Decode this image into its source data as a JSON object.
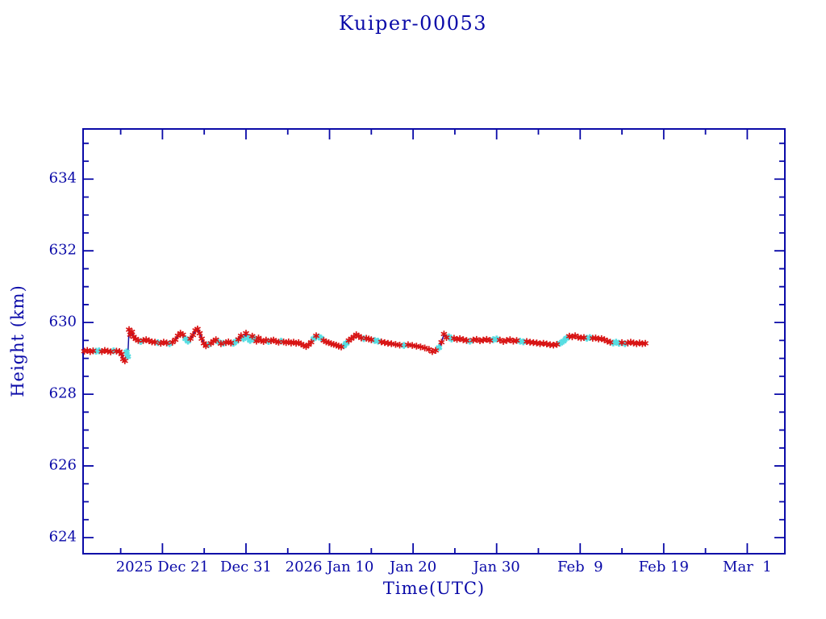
{
  "title": "Kuiper-00053",
  "colors": {
    "axis": "#0a0aa8",
    "text": "#0a0aa8",
    "connect_line": "#1212a0",
    "red_marker": "#d81414",
    "cyan_marker": "#57dde2",
    "background": "#ffffff"
  },
  "axes": {
    "x": {
      "label": "Time(UTC)",
      "majors": [
        {
          "day": 9.5,
          "label": "2025 Dec 21"
        },
        {
          "day": 19.5,
          "label": "Dec 31"
        },
        {
          "day": 29.5,
          "label": "2026 Jan 10"
        },
        {
          "day": 39.5,
          "label": "Jan 20"
        },
        {
          "day": 49.5,
          "label": "Jan 30"
        },
        {
          "day": 59.5,
          "label": "Feb  9"
        },
        {
          "day": 69.5,
          "label": "Feb 19"
        },
        {
          "day": 79.5,
          "label": "Mar  1"
        }
      ],
      "minor_days": [
        4.5,
        14.5,
        24.5,
        34.5,
        44.5,
        54.5,
        64.5,
        74.5
      ]
    },
    "y": {
      "label": "Height (km)",
      "majors": [
        {
          "value": 624,
          "label": "624"
        },
        {
          "value": 626,
          "label": "626"
        },
        {
          "value": 628,
          "label": "628"
        },
        {
          "value": 630,
          "label": "630"
        },
        {
          "value": 632,
          "label": "632"
        },
        {
          "value": 634,
          "label": "634"
        }
      ],
      "minor_values": [
        624.5,
        625,
        625.5,
        626.5,
        627,
        627.5,
        628.5,
        629,
        629.5,
        630.5,
        631,
        631.5,
        632.5,
        633,
        633.5,
        634.5,
        635
      ]
    }
  },
  "chart_data": {
    "type": "scatter",
    "title": "Kuiper-00053",
    "xlabel": "Time(UTC)",
    "ylabel": "Height (km)",
    "x_unit": "days, 0 = plot left edge (approx. 2025 Dec 11 12:00 UTC)",
    "xlim": [
      0,
      84
    ],
    "ylim": [
      623.55,
      635.4
    ],
    "grid": false,
    "legend": "none",
    "marker_colors": {
      "0": "#d81414",
      "1": "#57dde2"
    },
    "point_format": "[day, height_km, cyan_flag(optional)]",
    "points": [
      [
        0.15,
        629.2
      ],
      [
        0.5,
        629.22
      ],
      [
        0.85,
        629.19
      ],
      [
        1.2,
        629.21
      ],
      [
        1.55,
        629.2,
        1
      ],
      [
        1.9,
        629.21,
        1
      ],
      [
        2.25,
        629.19
      ],
      [
        2.6,
        629.22
      ],
      [
        2.95,
        629.2
      ],
      [
        3.3,
        629.18
      ],
      [
        3.65,
        629.21,
        1
      ],
      [
        4.0,
        629.2
      ],
      [
        4.35,
        629.19
      ],
      [
        4.6,
        629.12
      ],
      [
        4.8,
        628.98
      ],
      [
        5.0,
        628.93
      ],
      [
        5.2,
        629.18,
        1
      ],
      [
        5.35,
        629.05,
        1
      ],
      [
        5.5,
        629.8
      ],
      [
        5.65,
        629.66
      ],
      [
        5.85,
        629.74
      ],
      [
        6.05,
        629.6
      ],
      [
        6.3,
        629.54
      ],
      [
        6.6,
        629.5
      ],
      [
        6.9,
        629.47,
        1
      ],
      [
        7.2,
        629.5
      ],
      [
        7.55,
        629.52
      ],
      [
        7.9,
        629.49
      ],
      [
        8.25,
        629.46
      ],
      [
        8.6,
        629.45
      ],
      [
        8.95,
        629.44,
        1
      ],
      [
        9.3,
        629.42
      ],
      [
        9.65,
        629.45
      ],
      [
        10.0,
        629.43
      ],
      [
        10.35,
        629.41,
        1
      ],
      [
        10.7,
        629.45
      ],
      [
        11.05,
        629.52
      ],
      [
        11.35,
        629.63
      ],
      [
        11.65,
        629.7
      ],
      [
        11.95,
        629.66
      ],
      [
        12.25,
        629.55,
        1
      ],
      [
        12.55,
        629.48,
        1
      ],
      [
        12.85,
        629.55
      ],
      [
        13.15,
        629.65
      ],
      [
        13.45,
        629.78
      ],
      [
        13.7,
        629.82
      ],
      [
        13.95,
        629.7
      ],
      [
        14.2,
        629.55
      ],
      [
        14.45,
        629.42
      ],
      [
        14.7,
        629.35
      ],
      [
        15.0,
        629.38,
        1
      ],
      [
        15.3,
        629.42
      ],
      [
        15.6,
        629.48
      ],
      [
        15.9,
        629.52
      ],
      [
        16.2,
        629.46,
        1
      ],
      [
        16.5,
        629.41
      ],
      [
        16.8,
        629.42,
        1
      ],
      [
        17.1,
        629.44
      ],
      [
        17.4,
        629.46
      ],
      [
        17.7,
        629.43
      ],
      [
        18.0,
        629.42,
        1
      ],
      [
        18.3,
        629.47,
        1
      ],
      [
        18.6,
        629.53
      ],
      [
        18.9,
        629.63
      ],
      [
        19.2,
        629.55,
        1
      ],
      [
        19.5,
        629.7
      ],
      [
        19.75,
        629.58,
        1
      ],
      [
        20.0,
        629.5,
        1
      ],
      [
        20.25,
        629.62
      ],
      [
        20.5,
        629.55,
        1
      ],
      [
        20.75,
        629.48
      ],
      [
        21.0,
        629.57
      ],
      [
        21.3,
        629.5
      ],
      [
        21.6,
        629.47
      ],
      [
        21.9,
        629.51
      ],
      [
        22.2,
        629.47,
        1
      ],
      [
        22.5,
        629.49
      ],
      [
        22.8,
        629.51
      ],
      [
        23.1,
        629.47
      ],
      [
        23.4,
        629.45
      ],
      [
        23.7,
        629.48,
        1
      ],
      [
        24.0,
        629.46
      ],
      [
        24.3,
        629.44
      ],
      [
        24.6,
        629.46
      ],
      [
        24.9,
        629.43
      ],
      [
        25.2,
        629.45
      ],
      [
        25.5,
        629.42
      ],
      [
        25.8,
        629.44
      ],
      [
        26.1,
        629.4
      ],
      [
        26.4,
        629.36
      ],
      [
        26.7,
        629.33
      ],
      [
        27.0,
        629.38
      ],
      [
        27.3,
        629.45
      ],
      [
        27.6,
        629.55,
        1
      ],
      [
        27.9,
        629.63
      ],
      [
        28.2,
        629.6,
        1
      ],
      [
        28.5,
        629.56,
        1
      ],
      [
        28.8,
        629.5
      ],
      [
        29.1,
        629.46
      ],
      [
        29.4,
        629.44
      ],
      [
        29.7,
        629.41
      ],
      [
        30.0,
        629.39
      ],
      [
        30.3,
        629.37
      ],
      [
        30.6,
        629.34
      ],
      [
        30.9,
        629.32
      ],
      [
        31.2,
        629.35,
        1
      ],
      [
        31.5,
        629.42,
        1
      ],
      [
        31.8,
        629.5
      ],
      [
        32.1,
        629.55
      ],
      [
        32.4,
        629.6
      ],
      [
        32.7,
        629.66
      ],
      [
        33.0,
        629.62
      ],
      [
        33.3,
        629.57
      ],
      [
        33.6,
        629.55,
        1
      ],
      [
        33.9,
        629.56
      ],
      [
        34.2,
        629.54
      ],
      [
        34.5,
        629.52
      ],
      [
        34.9,
        629.5,
        1
      ],
      [
        35.3,
        629.48,
        1
      ],
      [
        35.7,
        629.46
      ],
      [
        36.1,
        629.44
      ],
      [
        36.5,
        629.42
      ],
      [
        36.9,
        629.41
      ],
      [
        37.4,
        629.39
      ],
      [
        37.9,
        629.37
      ],
      [
        38.4,
        629.36,
        1
      ],
      [
        38.9,
        629.38
      ],
      [
        39.4,
        629.36
      ],
      [
        39.9,
        629.34
      ],
      [
        40.4,
        629.32
      ],
      [
        40.9,
        629.29
      ],
      [
        41.4,
        629.25
      ],
      [
        41.8,
        629.19
      ],
      [
        42.2,
        629.22
      ],
      [
        42.6,
        629.3,
        1
      ],
      [
        42.9,
        629.45
      ],
      [
        43.2,
        629.68
      ],
      [
        43.5,
        629.58
      ],
      [
        43.8,
        629.6,
        1
      ],
      [
        44.1,
        629.54,
        1
      ],
      [
        44.4,
        629.56
      ],
      [
        44.75,
        629.53
      ],
      [
        45.1,
        629.55
      ],
      [
        45.5,
        629.52
      ],
      [
        45.9,
        629.5
      ],
      [
        46.3,
        629.48,
        1
      ],
      [
        46.7,
        629.51
      ],
      [
        47.1,
        629.53
      ],
      [
        47.5,
        629.49
      ],
      [
        47.9,
        629.51
      ],
      [
        48.3,
        629.53
      ],
      [
        48.7,
        629.5
      ],
      [
        49.1,
        629.52,
        1
      ],
      [
        49.5,
        629.54,
        1
      ],
      [
        49.9,
        629.51
      ],
      [
        50.3,
        629.47
      ],
      [
        50.7,
        629.5
      ],
      [
        51.1,
        629.52
      ],
      [
        51.5,
        629.48
      ],
      [
        51.9,
        629.5
      ],
      [
        52.3,
        629.48,
        1
      ],
      [
        52.7,
        629.46,
        1
      ],
      [
        53.1,
        629.47
      ],
      [
        53.5,
        629.45
      ],
      [
        53.9,
        629.44
      ],
      [
        54.3,
        629.43
      ],
      [
        54.7,
        629.41
      ],
      [
        55.1,
        629.42
      ],
      [
        55.5,
        629.4
      ],
      [
        55.9,
        629.38
      ],
      [
        56.3,
        629.37
      ],
      [
        56.7,
        629.39
      ],
      [
        57.1,
        629.42,
        1
      ],
      [
        57.5,
        629.48,
        1
      ],
      [
        57.85,
        629.56,
        1
      ],
      [
        58.2,
        629.62
      ],
      [
        58.55,
        629.6
      ],
      [
        58.9,
        629.63
      ],
      [
        59.25,
        629.59
      ],
      [
        59.6,
        629.57
      ],
      [
        59.95,
        629.58
      ],
      [
        60.3,
        629.56,
        1
      ],
      [
        60.65,
        629.58,
        1
      ],
      [
        61.0,
        629.56
      ],
      [
        61.35,
        629.57
      ],
      [
        61.7,
        629.54
      ],
      [
        62.05,
        629.55
      ],
      [
        62.4,
        629.52
      ],
      [
        62.75,
        629.48
      ],
      [
        63.1,
        629.45
      ],
      [
        63.45,
        629.43,
        1
      ],
      [
        63.8,
        629.45,
        1
      ],
      [
        64.15,
        629.42,
        1
      ],
      [
        64.5,
        629.44
      ],
      [
        64.85,
        629.41,
        1
      ],
      [
        65.2,
        629.43
      ],
      [
        65.55,
        629.45
      ],
      [
        65.9,
        629.43
      ],
      [
        66.25,
        629.41
      ],
      [
        66.6,
        629.43
      ],
      [
        66.95,
        629.41
      ],
      [
        67.3,
        629.42
      ]
    ]
  }
}
